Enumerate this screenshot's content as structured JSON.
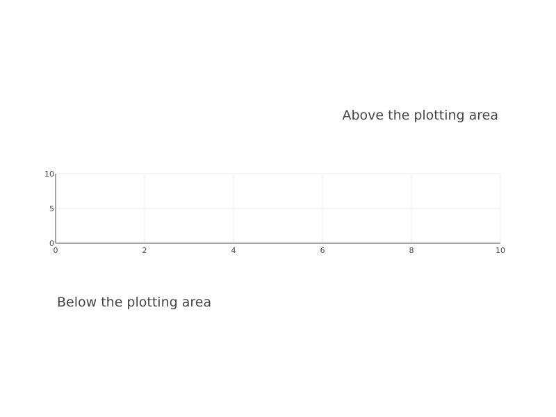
{
  "chart_data": {
    "type": "scatter",
    "title": "",
    "xlabel": "",
    "ylabel": "",
    "xlim": [
      0,
      10
    ],
    "ylim": [
      0,
      10
    ],
    "x_ticks": [
      0,
      2,
      4,
      6,
      8,
      10
    ],
    "y_ticks": [
      0,
      5,
      10
    ],
    "grid": true,
    "series": [],
    "annotations": [
      {
        "text": "Above the plotting area",
        "position": "above-right"
      },
      {
        "text": "Below the plotting area",
        "position": "below-left"
      }
    ]
  },
  "colors": {
    "background": "#ffffff",
    "grid": "#eeeeee",
    "axis": "#444444",
    "text": "#444444"
  }
}
